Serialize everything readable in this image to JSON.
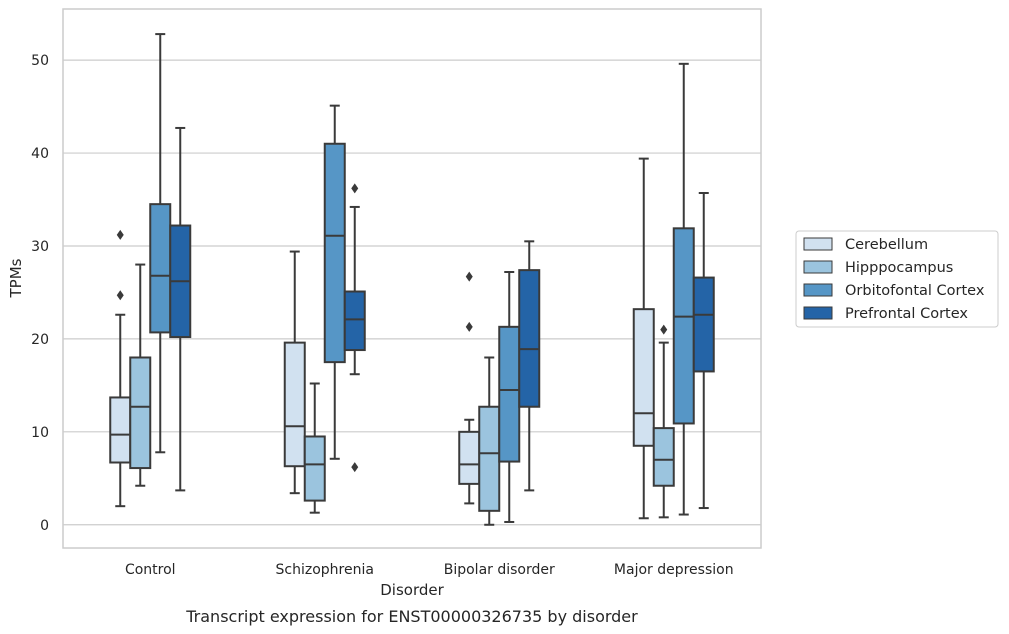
{
  "chart_data": {
    "type": "box",
    "xlabel": "Disorder",
    "ylabel": "TPMs",
    "caption": "Transcript expression for ENST00000326735 by disorder",
    "ylim": [
      -2.5,
      55.5
    ],
    "yticks": [
      0,
      10,
      20,
      30,
      40,
      50
    ],
    "grid": "horizontal",
    "legend_position": "right",
    "colors": [
      "#d1e1f0",
      "#9bc4de",
      "#5696c6",
      "#2464a7"
    ],
    "categories": [
      "Control",
      "Schizophrenia",
      "Bipolar disorder",
      "Major depression"
    ],
    "series": [
      {
        "name": "Cerebellum",
        "boxes": [
          {
            "whislo": 2.0,
            "q1": 6.7,
            "med": 9.7,
            "q3": 13.7,
            "whishi": 22.6,
            "fliers": [
              24.7,
              31.2
            ]
          },
          {
            "whislo": 3.4,
            "q1": 6.3,
            "med": 10.6,
            "q3": 19.6,
            "whishi": 29.4,
            "fliers": []
          },
          {
            "whislo": 2.3,
            "q1": 4.4,
            "med": 6.5,
            "q3": 10.0,
            "whishi": 11.3,
            "fliers": [
              21.3,
              26.7
            ]
          },
          {
            "whislo": 0.7,
            "q1": 8.5,
            "med": 12.0,
            "q3": 23.2,
            "whishi": 39.4,
            "fliers": []
          }
        ]
      },
      {
        "name": "Hipppocampus",
        "boxes": [
          {
            "whislo": 4.2,
            "q1": 6.1,
            "med": 12.7,
            "q3": 18.0,
            "whishi": 28.0,
            "fliers": []
          },
          {
            "whislo": 1.3,
            "q1": 2.6,
            "med": 6.5,
            "q3": 9.5,
            "whishi": 15.2,
            "fliers": []
          },
          {
            "whislo": 0.0,
            "q1": 1.5,
            "med": 7.7,
            "q3": 12.7,
            "whishi": 18.0,
            "fliers": []
          },
          {
            "whislo": 0.8,
            "q1": 4.2,
            "med": 7.0,
            "q3": 10.4,
            "whishi": 19.6,
            "fliers": [
              21.0
            ]
          }
        ]
      },
      {
        "name": "Orbitofontal Cortex",
        "boxes": [
          {
            "whislo": 7.8,
            "q1": 20.7,
            "med": 26.8,
            "q3": 34.5,
            "whishi": 52.8,
            "fliers": []
          },
          {
            "whislo": 7.1,
            "q1": 17.5,
            "med": 31.1,
            "q3": 41.0,
            "whishi": 45.1,
            "fliers": []
          },
          {
            "whislo": 0.3,
            "q1": 6.8,
            "med": 14.5,
            "q3": 21.3,
            "whishi": 27.2,
            "fliers": []
          },
          {
            "whislo": 1.1,
            "q1": 10.9,
            "med": 22.4,
            "q3": 31.9,
            "whishi": 49.6,
            "fliers": []
          }
        ]
      },
      {
        "name": "Prefrontal Cortex",
        "boxes": [
          {
            "whislo": 3.7,
            "q1": 20.2,
            "med": 26.2,
            "q3": 32.2,
            "whishi": 42.7,
            "fliers": []
          },
          {
            "whislo": 16.2,
            "q1": 18.8,
            "med": 22.1,
            "q3": 25.1,
            "whishi": 34.2,
            "fliers": [
              6.2,
              36.2
            ]
          },
          {
            "whislo": 3.7,
            "q1": 12.7,
            "med": 18.9,
            "q3": 27.4,
            "whishi": 30.5,
            "fliers": []
          },
          {
            "whislo": 1.8,
            "q1": 16.5,
            "med": 22.6,
            "q3": 26.6,
            "whishi": 35.7,
            "fliers": []
          }
        ]
      }
    ]
  }
}
